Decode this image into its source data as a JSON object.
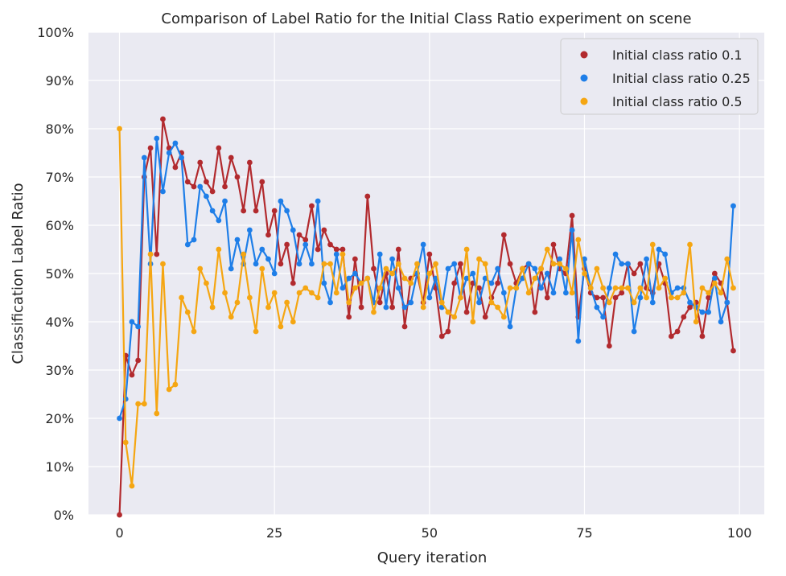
{
  "chart_data": {
    "type": "line",
    "title": "Comparison of Label Ratio for the Initial Class Ratio experiment on scene",
    "xlabel": "Query iteration",
    "ylabel": "Classification Label Ratio",
    "xlim": [
      -5,
      104
    ],
    "ylim": [
      0,
      1
    ],
    "xticks": [
      0,
      25,
      50,
      75,
      100
    ],
    "yticks": [
      0,
      0.1,
      0.2,
      0.3,
      0.4,
      0.5,
      0.6,
      0.7,
      0.8,
      0.9,
      1.0
    ],
    "ytick_labels": [
      "0%",
      "10%",
      "20%",
      "30%",
      "40%",
      "50%",
      "60%",
      "70%",
      "80%",
      "90%",
      "100%"
    ],
    "grid": true,
    "legend_position": "top-right",
    "x": [
      0,
      1,
      2,
      3,
      4,
      5,
      6,
      7,
      8,
      9,
      10,
      11,
      12,
      13,
      14,
      15,
      16,
      17,
      18,
      19,
      20,
      21,
      22,
      23,
      24,
      25,
      26,
      27,
      28,
      29,
      30,
      31,
      32,
      33,
      34,
      35,
      36,
      37,
      38,
      39,
      40,
      41,
      42,
      43,
      44,
      45,
      46,
      47,
      48,
      49,
      50,
      51,
      52,
      53,
      54,
      55,
      56,
      57,
      58,
      59,
      60,
      61,
      62,
      63,
      64,
      65,
      66,
      67,
      68,
      69,
      70,
      71,
      72,
      73,
      74,
      75,
      76,
      77,
      78,
      79,
      80,
      81,
      82,
      83,
      84,
      85,
      86,
      87,
      88,
      89,
      90,
      91,
      92,
      93,
      94,
      95,
      96,
      97,
      98,
      99
    ],
    "series": [
      {
        "name": "Initial class ratio 0.1",
        "color": "#b22a2e",
        "values": [
          0.0,
          0.33,
          0.29,
          0.32,
          0.7,
          0.76,
          0.54,
          0.82,
          0.76,
          0.72,
          0.75,
          0.69,
          0.68,
          0.73,
          0.69,
          0.67,
          0.76,
          0.68,
          0.74,
          0.7,
          0.63,
          0.73,
          0.63,
          0.69,
          0.58,
          0.63,
          0.52,
          0.56,
          0.48,
          0.58,
          0.57,
          0.64,
          0.55,
          0.59,
          0.56,
          0.55,
          0.55,
          0.41,
          0.53,
          0.43,
          0.66,
          0.51,
          0.44,
          0.5,
          0.43,
          0.55,
          0.39,
          0.49,
          0.5,
          0.44,
          0.54,
          0.47,
          0.37,
          0.38,
          0.48,
          0.52,
          0.42,
          0.48,
          0.47,
          0.41,
          0.45,
          0.48,
          0.58,
          0.52,
          0.48,
          0.51,
          0.52,
          0.42,
          0.51,
          0.45,
          0.56,
          0.51,
          0.5,
          0.62,
          0.41,
          0.51,
          0.46,
          0.45,
          0.45,
          0.35,
          0.45,
          0.46,
          0.52,
          0.5,
          0.52,
          0.47,
          0.46,
          0.52,
          0.48,
          0.37,
          0.38,
          0.41,
          0.43,
          0.44,
          0.37,
          0.45,
          0.5,
          0.48,
          0.44,
          0.34
        ]
      },
      {
        "name": "Initial class ratio 0.25",
        "color": "#1e7ee8",
        "values": [
          0.2,
          0.24,
          0.4,
          0.39,
          0.74,
          0.52,
          0.78,
          0.67,
          0.75,
          0.77,
          0.74,
          0.56,
          0.57,
          0.68,
          0.66,
          0.63,
          0.61,
          0.65,
          0.51,
          0.57,
          0.52,
          0.59,
          0.52,
          0.55,
          0.53,
          0.5,
          0.65,
          0.63,
          0.59,
          0.52,
          0.56,
          0.52,
          0.65,
          0.48,
          0.44,
          0.54,
          0.47,
          0.49,
          0.5,
          0.48,
          0.49,
          0.44,
          0.54,
          0.43,
          0.53,
          0.47,
          0.43,
          0.44,
          0.5,
          0.56,
          0.45,
          0.49,
          0.43,
          0.51,
          0.52,
          0.45,
          0.49,
          0.5,
          0.44,
          0.49,
          0.48,
          0.51,
          0.46,
          0.39,
          0.47,
          0.49,
          0.52,
          0.51,
          0.47,
          0.5,
          0.46,
          0.53,
          0.46,
          0.59,
          0.36,
          0.53,
          0.47,
          0.43,
          0.41,
          0.47,
          0.54,
          0.52,
          0.52,
          0.38,
          0.45,
          0.53,
          0.44,
          0.55,
          0.54,
          0.46,
          0.47,
          0.47,
          0.44,
          0.43,
          0.42,
          0.42,
          0.49,
          0.4,
          0.44,
          0.64
        ]
      },
      {
        "name": "Initial class ratio 0.5",
        "color": "#f5a612",
        "values": [
          0.8,
          0.15,
          0.06,
          0.23,
          0.23,
          0.54,
          0.21,
          0.52,
          0.26,
          0.27,
          0.45,
          0.42,
          0.38,
          0.51,
          0.48,
          0.43,
          0.55,
          0.46,
          0.41,
          0.44,
          0.54,
          0.45,
          0.38,
          0.51,
          0.43,
          0.46,
          0.39,
          0.44,
          0.4,
          0.46,
          0.47,
          0.46,
          0.45,
          0.52,
          0.52,
          0.46,
          0.54,
          0.44,
          0.47,
          0.48,
          0.49,
          0.42,
          0.47,
          0.51,
          0.5,
          0.52,
          0.49,
          0.48,
          0.52,
          0.43,
          0.5,
          0.52,
          0.44,
          0.42,
          0.41,
          0.45,
          0.55,
          0.4,
          0.53,
          0.52,
          0.44,
          0.43,
          0.41,
          0.47,
          0.47,
          0.51,
          0.46,
          0.49,
          0.51,
          0.55,
          0.52,
          0.52,
          0.51,
          0.46,
          0.57,
          0.5,
          0.47,
          0.51,
          0.47,
          0.44,
          0.47,
          0.47,
          0.47,
          0.44,
          0.47,
          0.45,
          0.56,
          0.47,
          0.49,
          0.45,
          0.45,
          0.46,
          0.56,
          0.4,
          0.47,
          0.46,
          0.48,
          0.46,
          0.53,
          0.47
        ]
      }
    ]
  }
}
